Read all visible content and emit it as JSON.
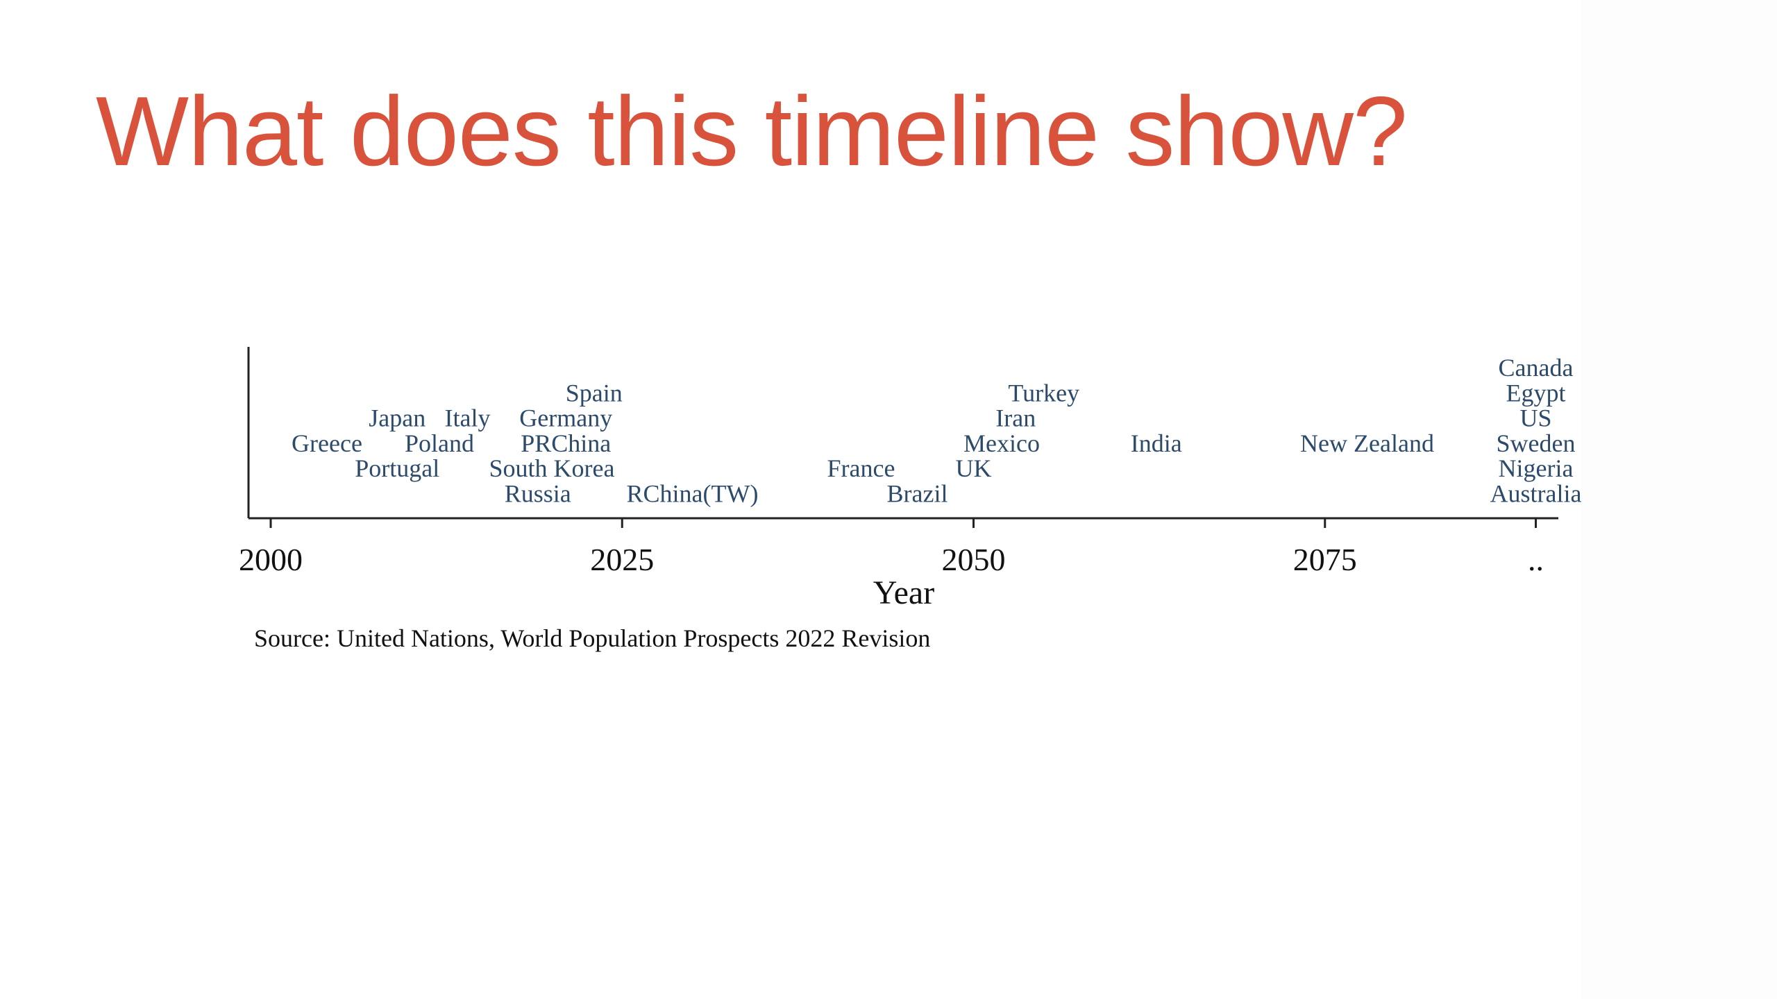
{
  "slide": {
    "title": "What does this timeline show?",
    "title_color": "#d9533c"
  },
  "chart_data": {
    "type": "scatter",
    "xlabel": "Year",
    "xlim": [
      1998,
      2092
    ],
    "xticks": [
      {
        "value": 2000,
        "label": "2000"
      },
      {
        "value": 2025,
        "label": "2025"
      },
      {
        "value": 2050,
        "label": "2050"
      },
      {
        "value": 2075,
        "label": "2075"
      },
      {
        "value": 2090,
        "label": ".."
      }
    ],
    "label_color": "#2c4a6b",
    "points": [
      {
        "label": "Greece",
        "x": 2004,
        "row": 3
      },
      {
        "label": "Japan",
        "x": 2009,
        "row": 2
      },
      {
        "label": "Portugal",
        "x": 2009,
        "row": 4
      },
      {
        "label": "Italy",
        "x": 2014,
        "row": 2
      },
      {
        "label": "Poland",
        "x": 2012,
        "row": 3
      },
      {
        "label": "Spain",
        "x": 2023,
        "row": 1
      },
      {
        "label": "Germany",
        "x": 2021,
        "row": 2
      },
      {
        "label": "PRChina",
        "x": 2021,
        "row": 3
      },
      {
        "label": "South Korea",
        "x": 2020,
        "row": 4
      },
      {
        "label": "Russia",
        "x": 2019,
        "row": 5
      },
      {
        "label": "RChina(TW)",
        "x": 2030,
        "row": 5
      },
      {
        "label": "France",
        "x": 2042,
        "row": 4
      },
      {
        "label": "Brazil",
        "x": 2046,
        "row": 5
      },
      {
        "label": "Turkey",
        "x": 2055,
        "row": 1
      },
      {
        "label": "Iran",
        "x": 2053,
        "row": 2
      },
      {
        "label": "Mexico",
        "x": 2052,
        "row": 3
      },
      {
        "label": "UK",
        "x": 2050,
        "row": 4
      },
      {
        "label": "India",
        "x": 2063,
        "row": 3
      },
      {
        "label": "New Zealand",
        "x": 2078,
        "row": 3
      },
      {
        "label": "Canada",
        "x": 2090,
        "row": 0
      },
      {
        "label": "Egypt",
        "x": 2090,
        "row": 1
      },
      {
        "label": "US",
        "x": 2090,
        "row": 2
      },
      {
        "label": "Sweden",
        "x": 2090,
        "row": 3
      },
      {
        "label": "Nigeria",
        "x": 2090,
        "row": 4
      },
      {
        "label": "Australia",
        "x": 2090,
        "row": 5
      }
    ],
    "note": "Source: United Nations, World Population Prospects 2022 Revision"
  }
}
